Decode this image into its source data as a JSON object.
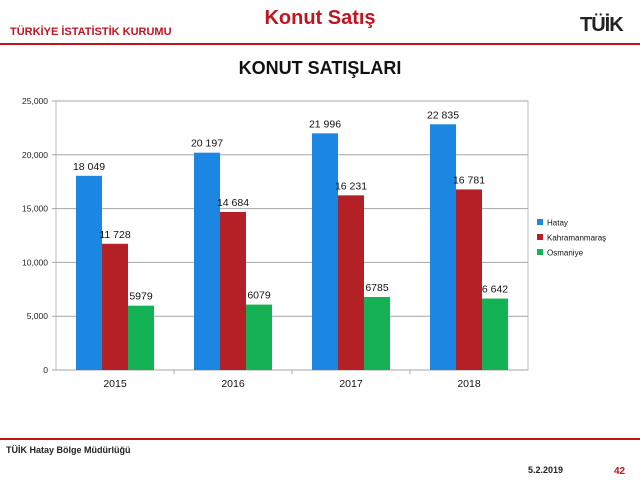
{
  "header": {
    "organization": "TÜRKİYE İSTATİSTİK KURUMU",
    "title": "Konut Satış",
    "logo_text": "TÜİK"
  },
  "footer": {
    "office": "TÜİK Hatay Bölge Müdürlüğü",
    "date": "5.2.2019",
    "page": "42"
  },
  "colors": {
    "accent": "#c0151f",
    "Hatay": "#1c86e3",
    "Kahramanmaraş": "#b32025",
    "Osmaniye": "#14b255"
  },
  "chart_data": {
    "type": "bar",
    "title": "KONUT SATIŞLARI",
    "categories": [
      "2015",
      "2016",
      "2017",
      "2018"
    ],
    "series": [
      {
        "name": "Hatay",
        "values": [
          18049,
          20197,
          21996,
          22835
        ],
        "labels": [
          "18 049",
          "20 197",
          "21 996",
          "22 835"
        ]
      },
      {
        "name": "Kahramanmaraş",
        "values": [
          11728,
          14684,
          16231,
          16781
        ],
        "labels": [
          "11 728",
          "14 684",
          "16 231",
          "16 781"
        ]
      },
      {
        "name": "Osmaniye",
        "values": [
          5979,
          6079,
          6785,
          6642
        ],
        "labels": [
          "5979",
          "6079",
          "6785",
          "6 642"
        ]
      }
    ],
    "ylim": [
      0,
      25000
    ],
    "yticks": [
      0,
      5000,
      10000,
      15000,
      20000,
      25000
    ],
    "ytick_labels": [
      "0",
      "5,000",
      "10,000",
      "15,000",
      "20,000",
      "25,000"
    ],
    "grid": true,
    "legend_position": "right"
  }
}
